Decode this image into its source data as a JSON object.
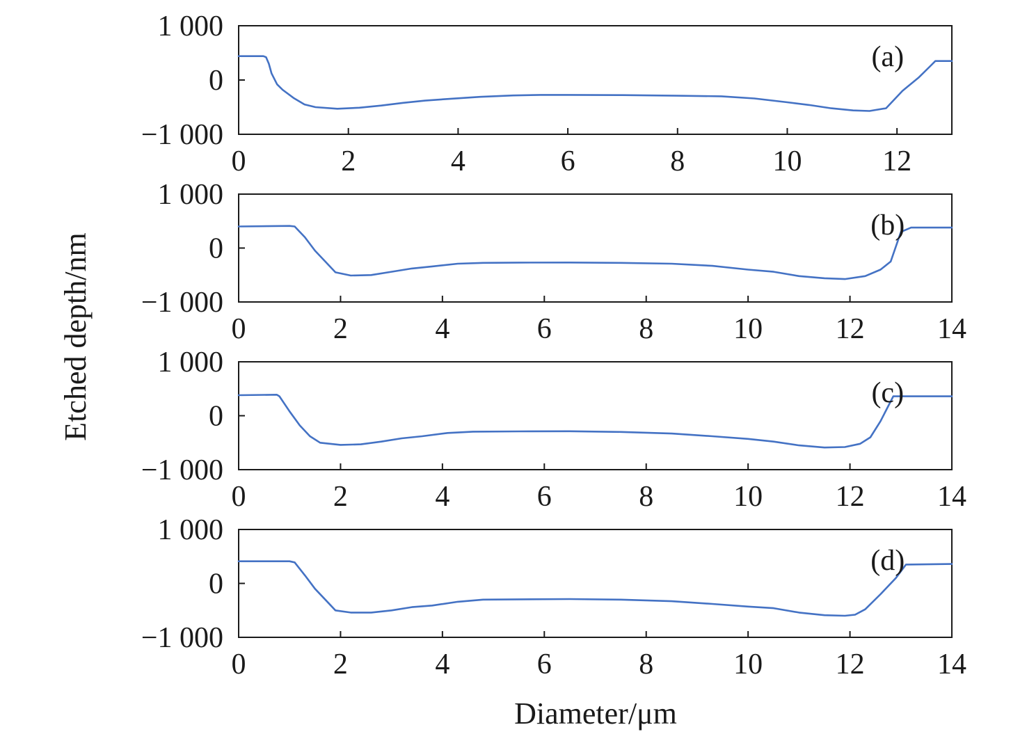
{
  "figure": {
    "xlabel": "Diameter/μm",
    "ylabel": "Etched depth/nm",
    "line_color": "#4472C4"
  },
  "chart_data": [
    {
      "type": "line",
      "panel_label": "(a)",
      "xlim": [
        0,
        13
      ],
      "ylim": [
        -1000,
        1000
      ],
      "xticks": [
        0,
        2,
        4,
        6,
        8,
        10,
        12
      ],
      "xtick_labels": [
        "0",
        "2",
        "4",
        "6",
        "8",
        "10",
        "12"
      ],
      "yticks": [
        1000,
        0,
        -1000
      ],
      "ytick_labels": [
        "1 000",
        "0",
        "−1 000"
      ],
      "grid": false,
      "series": [
        {
          "x": [
            0,
            0.45,
            0.5,
            0.55,
            0.6,
            0.7,
            0.8,
            1.0,
            1.2,
            1.4,
            1.8,
            2.2,
            2.6,
            3.0,
            3.4,
            3.8,
            4.4,
            5.0,
            5.5,
            6.0,
            7.0,
            8.0,
            8.8,
            9.4,
            10.0,
            10.4,
            10.8,
            11.2,
            11.5,
            11.8,
            12.1,
            12.4,
            12.6,
            12.7,
            13.0
          ],
          "y": [
            440,
            440,
            420,
            300,
            120,
            -80,
            -180,
            -330,
            -450,
            -500,
            -530,
            -510,
            -470,
            -420,
            -380,
            -350,
            -310,
            -285,
            -275,
            -275,
            -278,
            -290,
            -300,
            -340,
            -410,
            -460,
            -520,
            -560,
            -570,
            -520,
            -200,
            50,
            250,
            350,
            350
          ]
        }
      ]
    },
    {
      "type": "line",
      "panel_label": "(b)",
      "xlim": [
        0,
        14
      ],
      "ylim": [
        -1000,
        1000
      ],
      "xticks": [
        0,
        2,
        4,
        6,
        8,
        10,
        12,
        14
      ],
      "xtick_labels": [
        "0",
        "2",
        "4",
        "6",
        "8",
        "10",
        "12",
        "14"
      ],
      "yticks": [
        1000,
        0,
        -1000
      ],
      "ytick_labels": [
        "1 000",
        "0",
        "−1 000"
      ],
      "grid": false,
      "series": [
        {
          "x": [
            0,
            1.0,
            1.1,
            1.3,
            1.5,
            1.7,
            1.9,
            2.2,
            2.6,
            3.0,
            3.4,
            3.8,
            4.3,
            4.8,
            5.5,
            6.5,
            7.5,
            8.5,
            9.3,
            10.0,
            10.5,
            11.0,
            11.5,
            11.9,
            12.3,
            12.6,
            12.8,
            13.0,
            13.2,
            14.0
          ],
          "y": [
            400,
            410,
            400,
            200,
            -50,
            -250,
            -450,
            -510,
            -500,
            -440,
            -380,
            -340,
            -290,
            -275,
            -270,
            -268,
            -275,
            -290,
            -330,
            -400,
            -440,
            -520,
            -560,
            -575,
            -520,
            -400,
            -250,
            300,
            380,
            380
          ]
        }
      ]
    },
    {
      "type": "line",
      "panel_label": "(c)",
      "xlim": [
        0,
        14
      ],
      "ylim": [
        -1000,
        1000
      ],
      "xticks": [
        0,
        2,
        4,
        6,
        8,
        10,
        12,
        14
      ],
      "xtick_labels": [
        "0",
        "2",
        "4",
        "6",
        "8",
        "10",
        "12",
        "14"
      ],
      "yticks": [
        1000,
        0,
        -1000
      ],
      "ytick_labels": [
        "1 000",
        "0",
        "−1 000"
      ],
      "grid": false,
      "series": [
        {
          "x": [
            0,
            0.75,
            0.8,
            1.0,
            1.2,
            1.4,
            1.6,
            2.0,
            2.4,
            2.8,
            3.2,
            3.6,
            4.1,
            4.6,
            5.5,
            6.5,
            7.5,
            8.5,
            9.3,
            10.0,
            10.5,
            11.0,
            11.5,
            11.9,
            12.2,
            12.4,
            12.6,
            12.85,
            14.0
          ],
          "y": [
            380,
            390,
            360,
            80,
            -180,
            -380,
            -500,
            -540,
            -530,
            -480,
            -420,
            -380,
            -320,
            -295,
            -290,
            -288,
            -300,
            -330,
            -380,
            -430,
            -480,
            -550,
            -590,
            -580,
            -520,
            -400,
            -100,
            360,
            360
          ]
        }
      ]
    },
    {
      "type": "line",
      "panel_label": "(d)",
      "xlim": [
        0,
        14
      ],
      "ylim": [
        -1000,
        1000
      ],
      "xticks": [
        0,
        2,
        4,
        6,
        8,
        10,
        12,
        14
      ],
      "xtick_labels": [
        "0",
        "2",
        "4",
        "6",
        "8",
        "10",
        "12",
        "14"
      ],
      "yticks": [
        1000,
        0,
        -1000
      ],
      "ytick_labels": [
        "1 000",
        "0",
        "−1 000"
      ],
      "grid": false,
      "series": [
        {
          "x": [
            0,
            1.0,
            1.1,
            1.3,
            1.5,
            1.7,
            1.9,
            2.2,
            2.6,
            3.0,
            3.4,
            3.8,
            4.3,
            4.8,
            5.5,
            6.5,
            7.5,
            8.5,
            9.3,
            10.0,
            10.5,
            11.0,
            11.5,
            11.9,
            12.1,
            12.3,
            12.6,
            12.9,
            13.1,
            14.0
          ],
          "y": [
            410,
            410,
            390,
            150,
            -100,
            -300,
            -500,
            -540,
            -540,
            -500,
            -440,
            -410,
            -340,
            -300,
            -295,
            -290,
            -300,
            -330,
            -380,
            -430,
            -460,
            -540,
            -590,
            -600,
            -580,
            -480,
            -200,
            100,
            350,
            360
          ]
        }
      ]
    }
  ]
}
